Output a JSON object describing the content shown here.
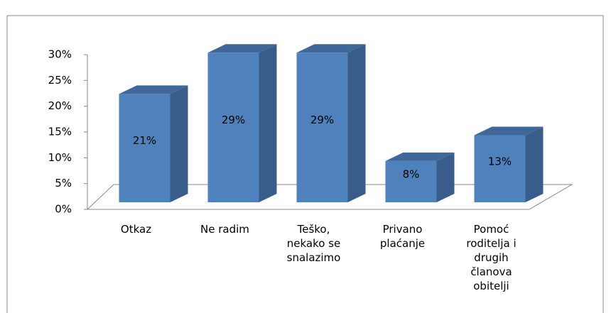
{
  "chart_data": {
    "type": "bar3d",
    "categories": [
      "Otkaz",
      "Ne radim",
      "Teško, nekako se snalazimo",
      "Privano plaćanje",
      "Pomoć roditelja i drugih članova obitelji"
    ],
    "values": [
      21,
      29,
      29,
      8,
      13
    ],
    "value_labels": [
      "21%",
      "29%",
      "29%",
      "8%",
      "13%"
    ],
    "color": "#4f81bd",
    "ylim": [
      0,
      30
    ],
    "yticks": [
      {
        "value": 0,
        "label": "0%"
      },
      {
        "value": 5,
        "label": "5%"
      },
      {
        "value": 10,
        "label": "10%"
      },
      {
        "value": 15,
        "label": "15%"
      },
      {
        "value": 20,
        "label": "20%"
      },
      {
        "value": 25,
        "label": "25%"
      },
      {
        "value": 30,
        "label": "30%"
      }
    ],
    "grid": false
  }
}
